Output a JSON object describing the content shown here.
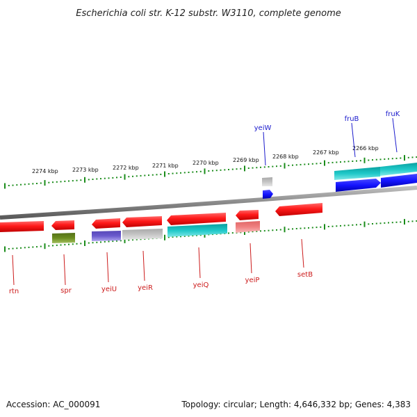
{
  "title": "Escherichia coli str. K-12 substr. W3110, complete genome",
  "scale_labels": [
    "2274 kbp",
    "2273 kbp",
    "2272 kbp",
    "2271 kbp",
    "2270 kbp",
    "2269 kbp",
    "2268 kbp",
    "2267 kbp",
    "2266 kbp"
  ],
  "top_gene_labels": [
    "yeiW",
    "fruB",
    "fruK"
  ],
  "bottom_gene_labels": [
    "rtn",
    "spr",
    "yeiU",
    "yeiR",
    "yeiQ",
    "yeiP",
    "setB"
  ],
  "footer": {
    "accession": "Accession: AC_000091",
    "summary": "Topology: circular; Length: 4,646,332 bp; Genes: 4,383"
  },
  "colors": {
    "gene_red": "#ff1a1a",
    "gene_cyan": "#1ec8c8",
    "gene_blue": "#1414ff",
    "gene_olive": "#6b8c1e",
    "gene_purple": "#6a5acd",
    "gene_grey": "#c0c0c0",
    "gene_pink": "#f08080",
    "tick_green": "#1a8c1a",
    "label_blue": "#1a1acc",
    "label_red": "#cc1a1a",
    "backbone": "#8a8a8a"
  }
}
